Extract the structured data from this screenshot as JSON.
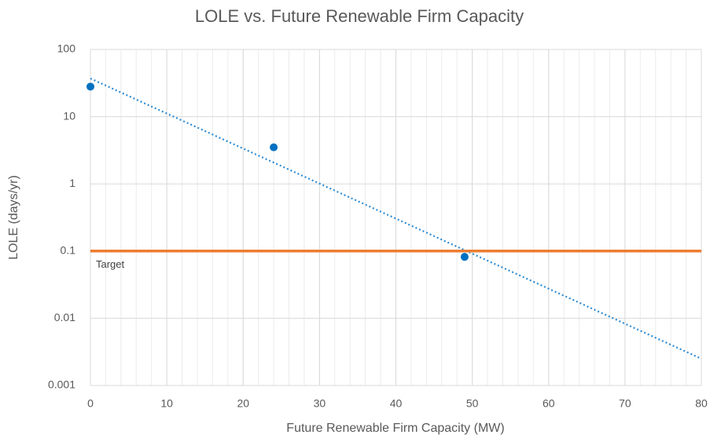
{
  "chart_data": {
    "type": "scatter",
    "title": "LOLE vs. Future Renewable Firm Capacity",
    "xlabel": "Future Renewable Firm Capacity (MW)",
    "ylabel": "LOLE (days/yr)",
    "xlim": [
      0,
      80
    ],
    "xticks": [
      0,
      10,
      20,
      30,
      40,
      50,
      60,
      70,
      80
    ],
    "x_minor_step": 2,
    "ylim": [
      0.001,
      100
    ],
    "yticks": [
      100,
      10,
      1,
      0.1,
      0.01,
      0.001
    ],
    "ylog": true,
    "grid": true,
    "series": [
      {
        "kind": "points",
        "color": "#0070c0",
        "x": [
          0,
          24,
          49
        ],
        "values": [
          28,
          3.5,
          0.082
        ]
      },
      {
        "kind": "trendline",
        "color": "#2e8bd0",
        "x": [
          0,
          80
        ],
        "values": [
          37,
          0.0025
        ]
      },
      {
        "kind": "line",
        "name": "Target",
        "color": "#ed7d31",
        "x": [
          0,
          80
        ],
        "values": [
          0.1,
          0.1
        ]
      }
    ]
  }
}
